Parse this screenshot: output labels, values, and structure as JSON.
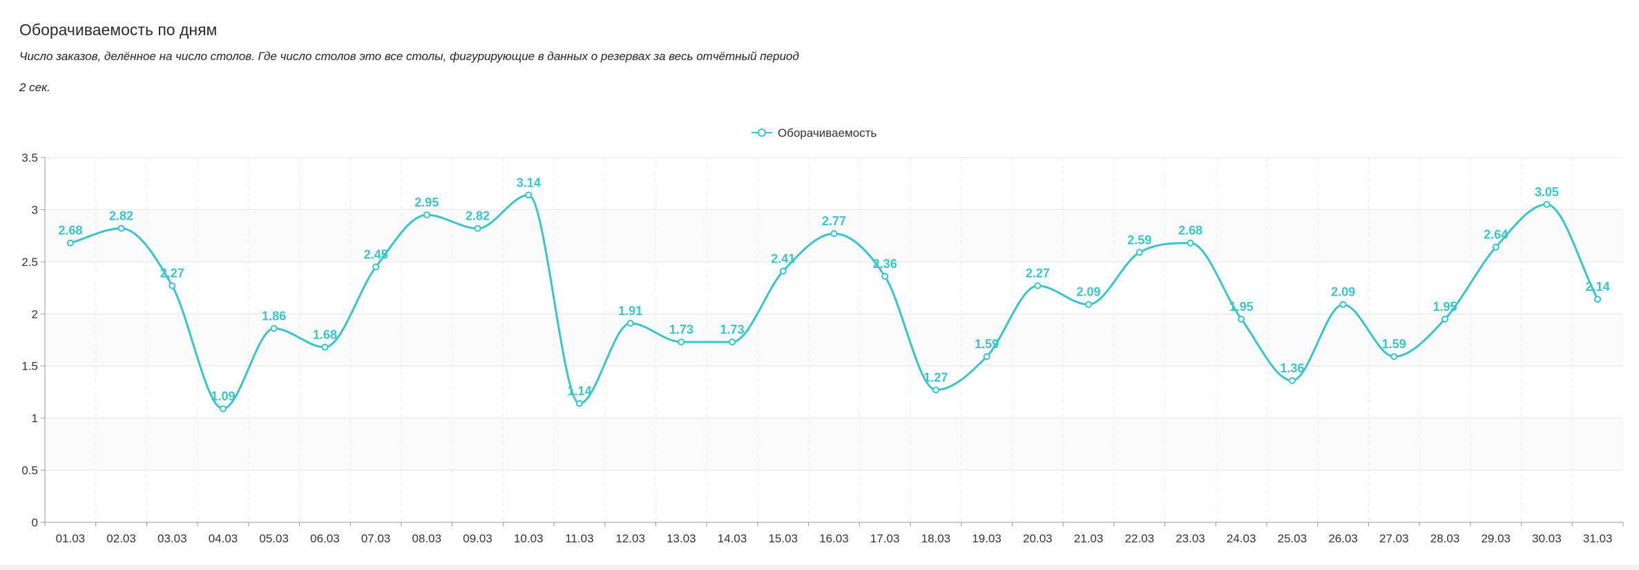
{
  "header": {
    "title": "Оборачиваемость по дням",
    "subtitle": "Число заказов, делённое на число столов. Где число столов это все столы, фигурирующие в данных о резервах за весь отчётный период",
    "timing": "2 сек."
  },
  "colors": {
    "series": "#36c6cc",
    "grid": "#e6e6e6",
    "band": "#fafafa"
  },
  "chart_data": {
    "type": "line",
    "smooth": true,
    "ylim": [
      0,
      3.5
    ],
    "yticks": [
      "0",
      "0.5",
      "1",
      "1.5",
      "2",
      "2.5",
      "3",
      "3.5"
    ],
    "yticks_values": [
      0,
      0.5,
      1,
      1.5,
      2,
      2.5,
      3,
      3.5
    ],
    "categories": [
      "01.03",
      "02.03",
      "03.03",
      "04.03",
      "05.03",
      "06.03",
      "07.03",
      "08.03",
      "09.03",
      "10.03",
      "11.03",
      "12.03",
      "13.03",
      "14.03",
      "15.03",
      "16.03",
      "17.03",
      "18.03",
      "19.03",
      "20.03",
      "21.03",
      "22.03",
      "23.03",
      "24.03",
      "25.03",
      "26.03",
      "27.03",
      "28.03",
      "29.03",
      "30.03",
      "31.03"
    ],
    "series": [
      {
        "name": "Оборачиваемость",
        "values": [
          2.68,
          2.82,
          2.27,
          1.09,
          1.86,
          1.68,
          2.45,
          2.95,
          2.82,
          3.14,
          1.14,
          1.91,
          1.73,
          1.73,
          2.41,
          2.77,
          2.36,
          1.27,
          1.59,
          2.27,
          2.09,
          2.59,
          2.68,
          1.95,
          1.36,
          2.09,
          1.59,
          1.95,
          2.64,
          3.05,
          2.14
        ]
      }
    ],
    "legend": "top-center",
    "grid": true
  }
}
